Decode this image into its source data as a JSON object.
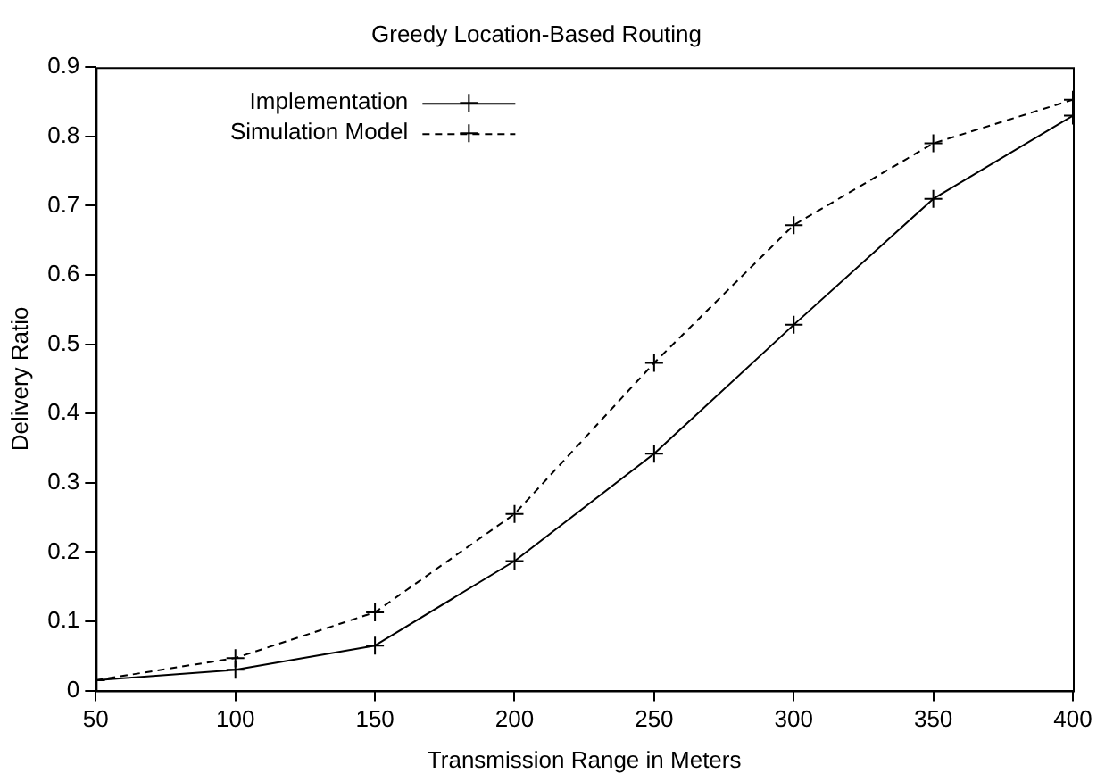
{
  "chart_data": {
    "type": "line",
    "title": "Greedy Location-Based Routing",
    "xlabel": "Transmission Range in Meters",
    "ylabel": "Delivery Ratio",
    "x": [
      50,
      100,
      150,
      200,
      250,
      300,
      350,
      400
    ],
    "series": [
      {
        "name": "Implementation",
        "color": "#000000",
        "values": [
          0.015,
          0.03,
          0.065,
          0.187,
          0.342,
          0.528,
          0.71,
          0.83
        ],
        "line_style": "solid",
        "marker": "cross"
      },
      {
        "name": "Simulation Model",
        "color": "#000000",
        "values": [
          0.015,
          0.047,
          0.113,
          0.255,
          0.473,
          0.672,
          0.79,
          0.853
        ],
        "line_style": "dashed",
        "marker": "cross"
      }
    ],
    "xlim": [
      50,
      400
    ],
    "xticks": [
      50,
      100,
      150,
      200,
      250,
      300,
      350,
      400
    ],
    "ylim": [
      0,
      0.9
    ],
    "yticks": [
      0,
      0.1,
      0.2,
      0.3,
      0.4,
      0.5,
      0.6,
      0.7,
      0.8,
      0.9
    ],
    "grid": false,
    "legend": "top left"
  }
}
